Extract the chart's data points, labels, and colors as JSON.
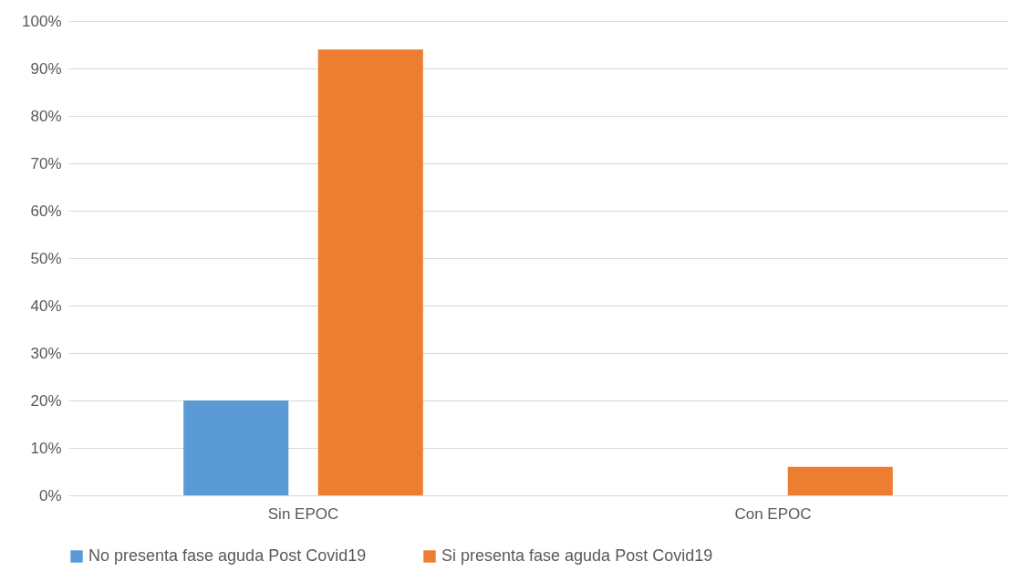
{
  "chart_data": {
    "type": "bar",
    "categories": [
      "Sin EPOC",
      "Con EPOC"
    ],
    "series": [
      {
        "name": "No presenta fase aguda Post Covid19",
        "color": "#5b9bd5",
        "values": [
          20,
          0
        ]
      },
      {
        "name": "Si presenta fase aguda Post Covid19",
        "color": "#ed7d31",
        "values": [
          94,
          6
        ]
      }
    ],
    "ylim": [
      0,
      100
    ],
    "yticks": [
      {
        "value": 0,
        "label": "0%"
      },
      {
        "value": 10,
        "label": "10%"
      },
      {
        "value": 20,
        "label": "20%"
      },
      {
        "value": 30,
        "label": "30%"
      },
      {
        "value": 40,
        "label": "40%"
      },
      {
        "value": 50,
        "label": "50%"
      },
      {
        "value": 60,
        "label": "60%"
      },
      {
        "value": 70,
        "label": "70%"
      },
      {
        "value": 80,
        "label": "80%"
      },
      {
        "value": 90,
        "label": "90%"
      },
      {
        "value": 100,
        "label": "100%"
      }
    ],
    "grid": "y",
    "legend": "bottom"
  }
}
